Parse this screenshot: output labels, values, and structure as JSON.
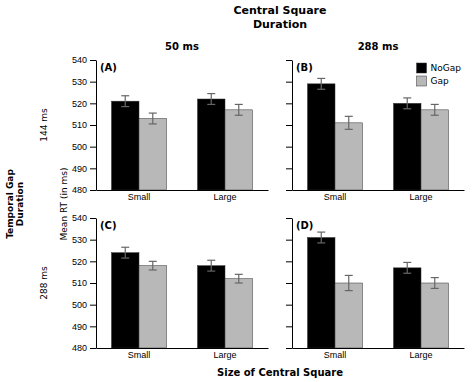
{
  "title": "Central Square\nDuration",
  "x_label": "Size of Central Square",
  "y_label": "Mean RT (in ms)",
  "annotations": [
    "50 ms",
    "288 ms",
    "144 ms",
    "288 ms",
    "Temporal Gap\nDuration"
  ],
  "chart_data": [
    {
      "type": "bar",
      "title": "(A)",
      "categories": [
        "Small",
        "Large"
      ],
      "series": [
        {
          "name": "NoGap",
          "color": "#000000",
          "values": [
            521,
            522
          ],
          "errors": [
            2.5,
            2.5
          ]
        },
        {
          "name": "Gap",
          "color": "#b8b8b8",
          "values": [
            513,
            517
          ],
          "errors": [
            2.5,
            2.5
          ]
        }
      ],
      "ylim": [
        480,
        540
      ],
      "yticks": [
        480,
        490,
        500,
        510,
        520,
        530,
        540
      ]
    },
    {
      "type": "bar",
      "title": "(B)",
      "categories": [
        "Small",
        "Large"
      ],
      "series": [
        {
          "name": "NoGap",
          "color": "#000000",
          "values": [
            529,
            520
          ],
          "errors": [
            2.5,
            2.5
          ]
        },
        {
          "name": "Gap",
          "color": "#b8b8b8",
          "values": [
            511,
            517
          ],
          "errors": [
            3.0,
            2.5
          ]
        }
      ],
      "ylim": [
        480,
        540
      ],
      "yticks": [
        480,
        490,
        500,
        510,
        520,
        530,
        540
      ],
      "tick_labels": "x",
      "legend": "upper right"
    },
    {
      "type": "bar",
      "title": "(C)",
      "categories": [
        "Small",
        "Large"
      ],
      "series": [
        {
          "name": "NoGap",
          "color": "#000000",
          "values": [
            524,
            518
          ],
          "errors": [
            2.5,
            2.5
          ]
        },
        {
          "name": "Gap",
          "color": "#b8b8b8",
          "values": [
            518,
            512
          ],
          "errors": [
            2.0,
            2.0
          ]
        }
      ],
      "ylim": [
        480,
        540
      ],
      "yticks": [
        480,
        490,
        500,
        510,
        520,
        530,
        540
      ]
    },
    {
      "type": "bar",
      "title": "(D)",
      "categories": [
        "Small",
        "Large"
      ],
      "series": [
        {
          "name": "NoGap",
          "color": "#000000",
          "values": [
            531,
            517
          ],
          "errors": [
            2.5,
            2.5
          ]
        },
        {
          "name": "Gap",
          "color": "#b8b8b8",
          "values": [
            510,
            510
          ],
          "errors": [
            3.5,
            2.5
          ]
        }
      ],
      "ylim": [
        480,
        540
      ],
      "yticks": [
        480,
        490,
        500,
        510,
        520,
        530,
        540
      ],
      "tick_labels": "x"
    }
  ]
}
